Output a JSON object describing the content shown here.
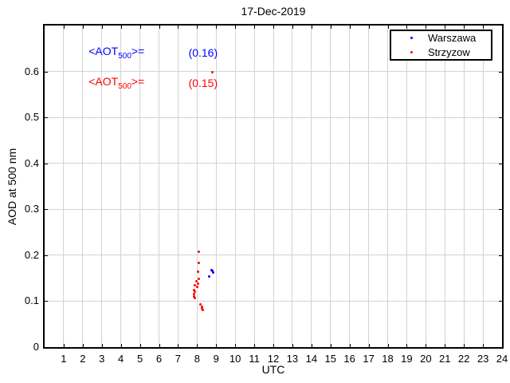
{
  "chart_data": {
    "type": "scatter",
    "title": "17-Dec-2019",
    "xlabel": "UTC",
    "ylabel": "AOD at 500 nm",
    "xlim": [
      0,
      24
    ],
    "ylim": [
      0,
      0.7
    ],
    "xticks": [
      1,
      2,
      3,
      4,
      5,
      6,
      7,
      8,
      9,
      10,
      11,
      12,
      13,
      14,
      15,
      16,
      17,
      18,
      19,
      20,
      21,
      22,
      23,
      24
    ],
    "yticks": [
      0,
      0.1,
      0.2,
      0.3,
      0.4,
      0.5,
      0.6
    ],
    "ytick_labels": [
      "0",
      "0.1",
      "0.2",
      "0.3",
      "0.4",
      "0.5",
      "0.6"
    ],
    "grid": true,
    "grid_color": "#d3d3d3",
    "legend_position": "top-right",
    "series": [
      {
        "name": "Warszawa",
        "color": "#0000ff",
        "marker": "dot",
        "points": [
          [
            8.74,
            0.168
          ],
          [
            8.8,
            0.166
          ],
          [
            8.84,
            0.163
          ],
          [
            8.65,
            0.154
          ]
        ]
      },
      {
        "name": "Strzyzow",
        "color": "#ff0000",
        "marker": "dot",
        "points": [
          [
            8.07,
            0.207
          ],
          [
            8.1,
            0.184
          ],
          [
            8.06,
            0.164
          ],
          [
            8.1,
            0.148
          ],
          [
            7.97,
            0.143
          ],
          [
            8.04,
            0.138
          ],
          [
            7.9,
            0.134
          ],
          [
            7.99,
            0.131
          ],
          [
            7.83,
            0.124
          ],
          [
            7.88,
            0.12
          ],
          [
            7.83,
            0.116
          ],
          [
            7.86,
            0.111
          ],
          [
            7.9,
            0.107
          ],
          [
            8.18,
            0.093
          ],
          [
            8.24,
            0.088
          ],
          [
            8.26,
            0.084
          ],
          [
            8.29,
            0.08
          ],
          [
            8.82,
            0.599
          ]
        ]
      }
    ],
    "annotations": [
      {
        "series": "Warszawa",
        "prefix": "<AOT",
        "sub": "500",
        "suffix": ">=",
        "value": "(0.16)",
        "color": "#0000ff",
        "label_x": 2.31,
        "value_x": 7.55,
        "y": 0.64
      },
      {
        "series": "Strzyzow",
        "prefix": "<AOT",
        "sub": "500",
        "suffix": ">=",
        "value": "(0.15)",
        "color": "#ff0000",
        "label_x": 2.31,
        "value_x": 7.55,
        "y": 0.574
      }
    ]
  }
}
